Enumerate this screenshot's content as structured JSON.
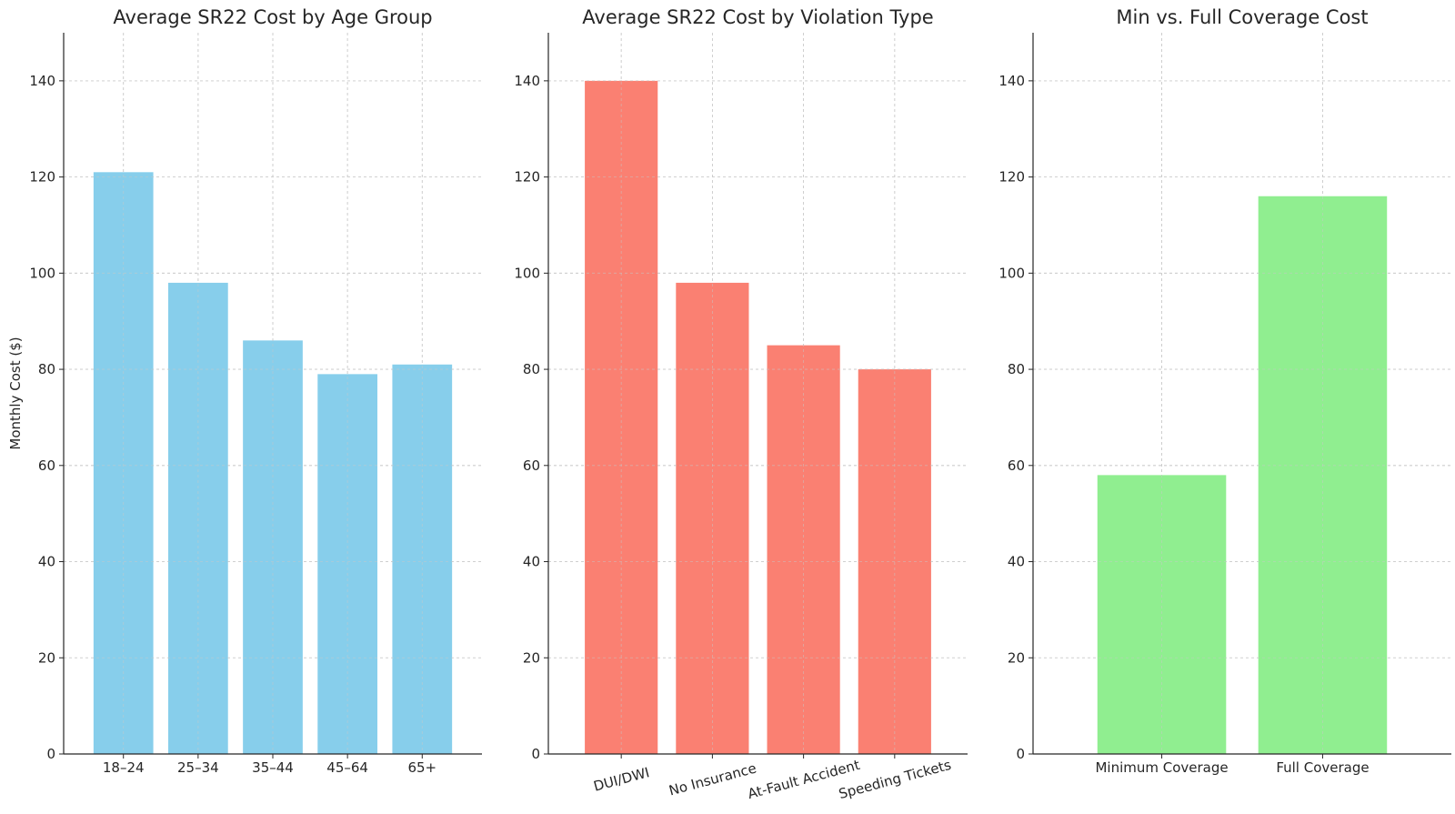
{
  "chart_data": [
    {
      "type": "bar",
      "title": "Average SR22 Cost by Age Group",
      "xlabel": "",
      "ylabel": "Monthly Cost ($)",
      "categories": [
        "18–24",
        "25–34",
        "35–44",
        "45–64",
        "65+"
      ],
      "values": [
        121,
        98,
        86,
        79,
        81
      ],
      "color": "#87ceeb",
      "ylim": [
        0,
        150
      ],
      "yticks": [
        0,
        20,
        40,
        60,
        80,
        100,
        120,
        140
      ],
      "grid": true,
      "xtick_rotation": 0
    },
    {
      "type": "bar",
      "title": "Average SR22 Cost by Violation Type",
      "xlabel": "",
      "ylabel": "",
      "categories": [
        "DUI/DWI",
        "No Insurance",
        "At-Fault Accident",
        "Speeding Tickets"
      ],
      "values": [
        140,
        98,
        85,
        80
      ],
      "color": "#fa8072",
      "ylim": [
        0,
        150
      ],
      "yticks": [
        0,
        20,
        40,
        60,
        80,
        100,
        120,
        140
      ],
      "grid": true,
      "xtick_rotation": 15
    },
    {
      "type": "bar",
      "title": "Min vs. Full Coverage Cost",
      "xlabel": "",
      "ylabel": "",
      "categories": [
        "Minimum Coverage",
        "Full Coverage"
      ],
      "values": [
        58,
        116
      ],
      "color": "#90ee90",
      "ylim": [
        0,
        150
      ],
      "yticks": [
        0,
        20,
        40,
        60,
        80,
        100,
        120,
        140
      ],
      "grid": true,
      "xtick_rotation": 0
    }
  ]
}
